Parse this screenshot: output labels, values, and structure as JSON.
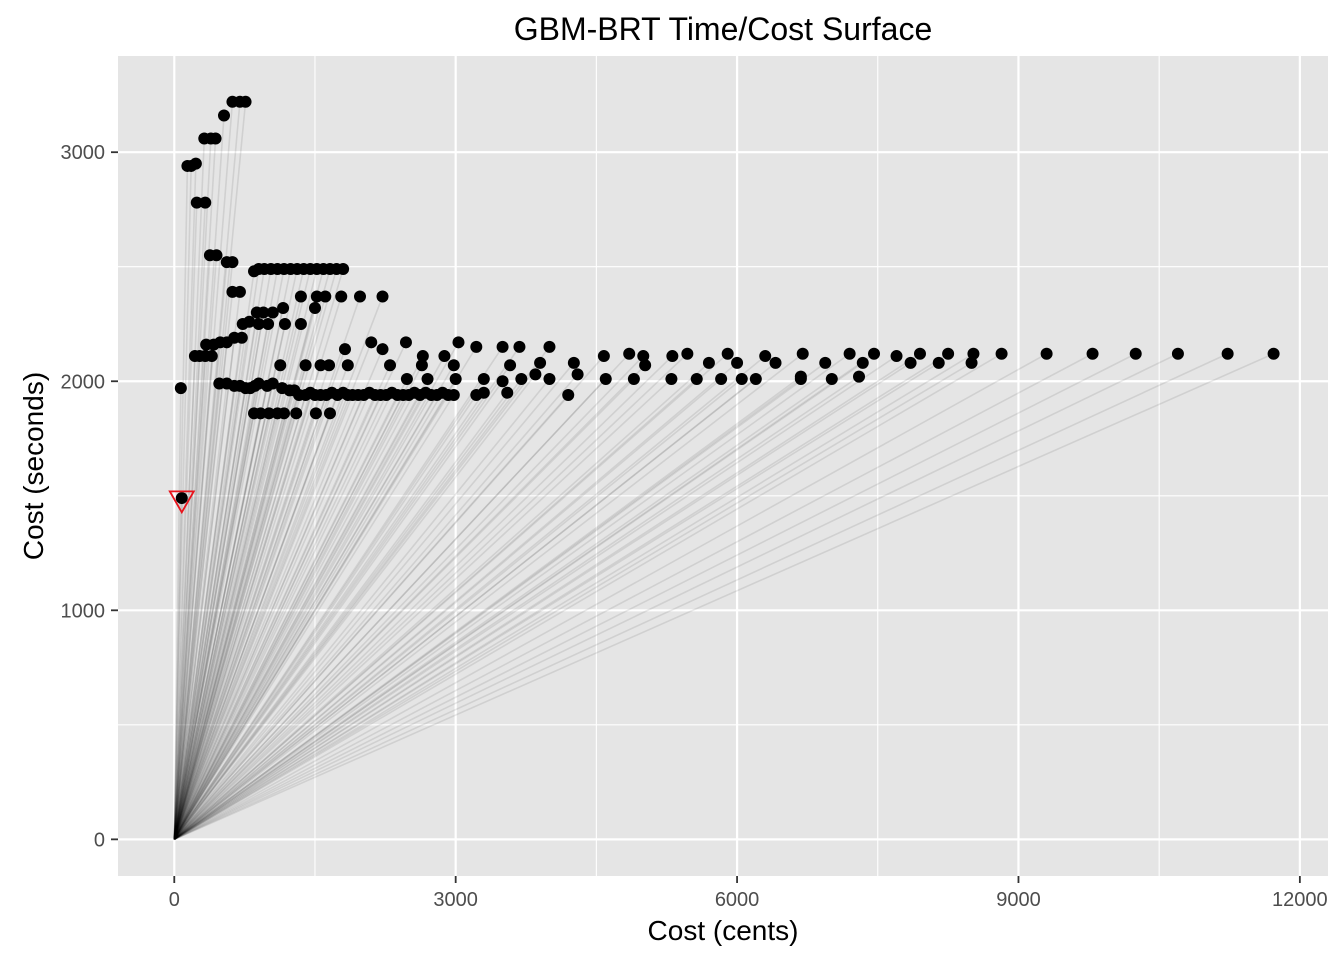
{
  "chart_data": {
    "type": "scatter",
    "title": "GBM-BRT Time/Cost Surface",
    "xlabel": "Cost (cents)",
    "ylabel": "Cost (seconds)",
    "xlim": [
      -600,
      12300
    ],
    "ylim": [
      -160,
      3420
    ],
    "x_ticks": [
      0,
      3000,
      6000,
      9000,
      12000
    ],
    "y_ticks": [
      0,
      1000,
      2000,
      3000
    ],
    "grid": true,
    "legend": "none",
    "colors": {
      "panel": "#e5e5e5",
      "grid": "#ffffff",
      "point": "#000000",
      "segment": "#000000",
      "highlight": "#e8141c"
    },
    "segments_from_origin": true,
    "highlight": {
      "marker": "triangle-down",
      "x": 80,
      "y": 1480
    },
    "points": [
      [
        70,
        1970
      ],
      [
        80,
        1490
      ],
      [
        140,
        2940
      ],
      [
        180,
        2940
      ],
      [
        230,
        2950
      ],
      [
        240,
        2780
      ],
      [
        330,
        2780
      ],
      [
        320,
        3060
      ],
      [
        390,
        3060
      ],
      [
        440,
        3060
      ],
      [
        530,
        3160
      ],
      [
        620,
        3220
      ],
      [
        700,
        3220
      ],
      [
        760,
        3220
      ],
      [
        380,
        2550
      ],
      [
        450,
        2550
      ],
      [
        560,
        2520
      ],
      [
        620,
        2520
      ],
      [
        620,
        2390
      ],
      [
        700,
        2390
      ],
      [
        220,
        2110
      ],
      [
        270,
        2110
      ],
      [
        330,
        2110
      ],
      [
        400,
        2110
      ],
      [
        340,
        2160
      ],
      [
        420,
        2160
      ],
      [
        490,
        2170
      ],
      [
        560,
        2170
      ],
      [
        640,
        2190
      ],
      [
        720,
        2190
      ],
      [
        480,
        1990
      ],
      [
        560,
        1990
      ],
      [
        640,
        1980
      ],
      [
        700,
        1980
      ],
      [
        760,
        1970
      ],
      [
        810,
        1970
      ],
      [
        860,
        1980
      ],
      [
        900,
        1990
      ],
      [
        990,
        1980
      ],
      [
        1050,
        1990
      ],
      [
        1150,
        1970
      ],
      [
        1230,
        1960
      ],
      [
        1280,
        1960
      ],
      [
        1330,
        1940
      ],
      [
        1400,
        1940
      ],
      [
        1450,
        1950
      ],
      [
        1500,
        1940
      ],
      [
        1560,
        1940
      ],
      [
        1620,
        1940
      ],
      [
        1680,
        1950
      ],
      [
        1740,
        1940
      ],
      [
        1800,
        1950
      ],
      [
        1850,
        1940
      ],
      [
        1900,
        1940
      ],
      [
        1960,
        1940
      ],
      [
        2020,
        1940
      ],
      [
        2080,
        1950
      ],
      [
        2140,
        1940
      ],
      [
        2200,
        1940
      ],
      [
        2260,
        1940
      ],
      [
        2320,
        1950
      ],
      [
        2380,
        1940
      ],
      [
        2440,
        1940
      ],
      [
        2500,
        1940
      ],
      [
        2560,
        1950
      ],
      [
        2620,
        1940
      ],
      [
        2680,
        1950
      ],
      [
        2740,
        1940
      ],
      [
        2800,
        1940
      ],
      [
        2860,
        1950
      ],
      [
        2920,
        1940
      ],
      [
        2980,
        1940
      ],
      [
        3220,
        1940
      ],
      [
        3300,
        1950
      ],
      [
        3550,
        1950
      ],
      [
        4200,
        1940
      ],
      [
        730,
        2250
      ],
      [
        800,
        2260
      ],
      [
        900,
        2250
      ],
      [
        1000,
        2250
      ],
      [
        1180,
        2250
      ],
      [
        1350,
        2250
      ],
      [
        880,
        2300
      ],
      [
        950,
        2300
      ],
      [
        1050,
        2300
      ],
      [
        1160,
        2320
      ],
      [
        1500,
        2320
      ],
      [
        1350,
        2370
      ],
      [
        1520,
        2370
      ],
      [
        1610,
        2370
      ],
      [
        1780,
        2370
      ],
      [
        1980,
        2370
      ],
      [
        2220,
        2370
      ],
      [
        850,
        2480
      ],
      [
        900,
        2490
      ],
      [
        960,
        2490
      ],
      [
        1030,
        2490
      ],
      [
        1100,
        2490
      ],
      [
        1170,
        2490
      ],
      [
        1240,
        2490
      ],
      [
        1310,
        2490
      ],
      [
        1380,
        2490
      ],
      [
        1450,
        2490
      ],
      [
        1520,
        2490
      ],
      [
        1590,
        2490
      ],
      [
        1660,
        2490
      ],
      [
        1730,
        2490
      ],
      [
        1800,
        2490
      ],
      [
        850,
        1860
      ],
      [
        920,
        1860
      ],
      [
        1010,
        1860
      ],
      [
        1100,
        1860
      ],
      [
        1170,
        1860
      ],
      [
        1300,
        1860
      ],
      [
        1510,
        1860
      ],
      [
        1660,
        1860
      ],
      [
        1130,
        2070
      ],
      [
        1400,
        2070
      ],
      [
        1560,
        2070
      ],
      [
        1650,
        2070
      ],
      [
        1850,
        2070
      ],
      [
        2300,
        2070
      ],
      [
        2640,
        2070
      ],
      [
        2980,
        2070
      ],
      [
        3580,
        2070
      ],
      [
        3900,
        2080
      ],
      [
        4260,
        2080
      ],
      [
        5020,
        2070
      ],
      [
        1820,
        2140
      ],
      [
        2100,
        2170
      ],
      [
        2220,
        2140
      ],
      [
        2470,
        2170
      ],
      [
        2650,
        2110
      ],
      [
        2880,
        2110
      ],
      [
        3030,
        2170
      ],
      [
        3220,
        2150
      ],
      [
        3500,
        2150
      ],
      [
        3680,
        2150
      ],
      [
        4000,
        2150
      ],
      [
        4580,
        2110
      ],
      [
        2480,
        2010
      ],
      [
        2700,
        2010
      ],
      [
        3000,
        2010
      ],
      [
        3300,
        2010
      ],
      [
        3500,
        2000
      ],
      [
        3700,
        2010
      ],
      [
        3850,
        2030
      ],
      [
        4000,
        2010
      ],
      [
        4300,
        2030
      ],
      [
        4600,
        2010
      ],
      [
        4900,
        2010
      ],
      [
        5300,
        2010
      ],
      [
        5570,
        2010
      ],
      [
        5830,
        2010
      ],
      [
        6050,
        2010
      ],
      [
        6200,
        2010
      ],
      [
        6680,
        2010
      ],
      [
        7010,
        2010
      ],
      [
        5310,
        2110
      ],
      [
        5470,
        2120
      ],
      [
        5900,
        2120
      ],
      [
        6300,
        2110
      ],
      [
        6700,
        2120
      ],
      [
        7200,
        2120
      ],
      [
        7460,
        2120
      ],
      [
        7700,
        2110
      ],
      [
        7950,
        2120
      ],
      [
        8250,
        2120
      ],
      [
        8520,
        2120
      ],
      [
        8820,
        2120
      ],
      [
        9300,
        2120
      ],
      [
        9790,
        2120
      ],
      [
        10250,
        2120
      ],
      [
        10700,
        2120
      ],
      [
        11230,
        2120
      ],
      [
        11720,
        2120
      ],
      [
        5700,
        2080
      ],
      [
        6000,
        2080
      ],
      [
        6410,
        2080
      ],
      [
        6940,
        2080
      ],
      [
        7340,
        2080
      ],
      [
        7850,
        2080
      ],
      [
        8150,
        2080
      ],
      [
        8500,
        2080
      ],
      [
        7300,
        2020
      ],
      [
        6680,
        2020
      ],
      [
        4850,
        2120
      ],
      [
        5000,
        2110
      ]
    ]
  }
}
